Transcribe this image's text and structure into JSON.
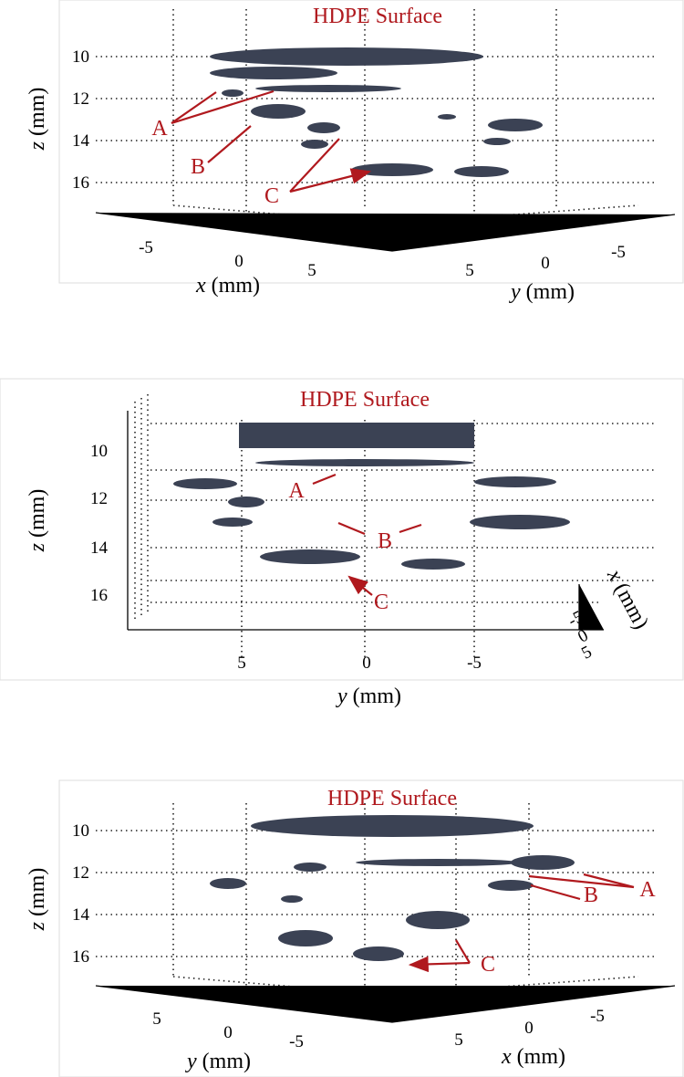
{
  "panels": [
    {
      "title": "HDPE Surface",
      "z_axis": {
        "var": "z",
        "unit": "(mm)",
        "ticks": [
          10,
          12,
          14,
          16
        ]
      },
      "axes": [
        {
          "var": "x",
          "unit": "(mm)",
          "ticks": [
            -5,
            0,
            5
          ]
        },
        {
          "var": "y",
          "unit": "(mm)",
          "ticks": [
            5,
            0,
            -5
          ]
        }
      ],
      "annotations": [
        "A",
        "B",
        "C"
      ]
    },
    {
      "title": "HDPE Surface",
      "z_axis": {
        "var": "z",
        "unit": "(mm)",
        "ticks": [
          10,
          12,
          14,
          16
        ]
      },
      "axes": [
        {
          "var": "y",
          "unit": "(mm)",
          "ticks": [
            5,
            0,
            -5
          ]
        },
        {
          "var": "x",
          "unit": "(mm)",
          "ticks": [
            -5,
            0,
            5
          ]
        }
      ],
      "annotations": [
        "A",
        "B",
        "C"
      ]
    },
    {
      "title": "HDPE Surface",
      "z_axis": {
        "var": "z",
        "unit": "(mm)",
        "ticks": [
          10,
          12,
          14,
          16
        ]
      },
      "axes": [
        {
          "var": "y",
          "unit": "(mm)",
          "ticks": [
            5,
            0,
            -5
          ]
        },
        {
          "var": "x",
          "unit": "(mm)",
          "ticks": [
            5,
            0,
            -5
          ]
        }
      ],
      "annotations": [
        "A",
        "B",
        "C"
      ]
    }
  ]
}
